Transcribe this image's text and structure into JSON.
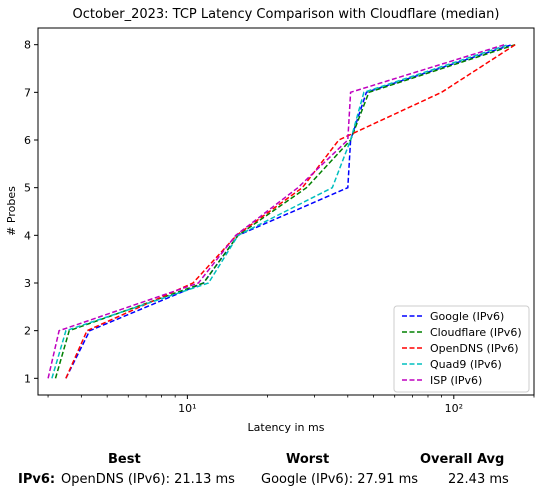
{
  "chart_data": {
    "type": "line",
    "title": "October_2023: TCP Latency Comparison with Cloudflare (median)",
    "xlabel": "Latency in ms",
    "ylabel": "# Probes",
    "xscale": "log",
    "xlim": [
      2.75,
      200
    ],
    "ylim": [
      0.65,
      8.35
    ],
    "xticks": [
      {
        "value": 10,
        "label": "10¹"
      },
      {
        "value": 100,
        "label": "10²"
      }
    ],
    "yticks": [
      1,
      2,
      3,
      4,
      5,
      6,
      7,
      8
    ],
    "grid": false,
    "legend_position": "lower-right",
    "line_style": "dashed",
    "series": [
      {
        "name": "Google (IPv6)",
        "color": "#0000ff",
        "x": [
          3.5,
          4.3,
          11.5,
          15.5,
          40,
          41,
          47,
          165
        ],
        "y": [
          1,
          2,
          3,
          4,
          5,
          6,
          7,
          8
        ]
      },
      {
        "name": "Cloudflare (IPv6)",
        "color": "#008000",
        "x": [
          3.2,
          3.6,
          11.5,
          15.5,
          28,
          41,
          48,
          170
        ],
        "y": [
          1,
          2,
          3,
          4,
          5,
          6,
          7,
          8
        ]
      },
      {
        "name": "OpenDNS (IPv6)",
        "color": "#ff0000",
        "x": [
          3.5,
          4.2,
          10.5,
          15.3,
          27,
          37,
          90,
          170
        ],
        "y": [
          1,
          2,
          3,
          4,
          5,
          6,
          7,
          8
        ]
      },
      {
        "name": "Quad9 (IPv6)",
        "color": "#00bfbf",
        "x": [
          3.1,
          3.5,
          12,
          15.5,
          35,
          41,
          46,
          160
        ],
        "y": [
          1,
          2,
          3,
          4,
          5,
          6,
          7,
          8
        ]
      },
      {
        "name": "ISP (IPv6)",
        "color": "#bf00bf",
        "x": [
          3.0,
          3.3,
          11,
          15.2,
          26,
          40,
          41,
          155
        ],
        "y": [
          1,
          2,
          3,
          4,
          5,
          6,
          7,
          8
        ]
      }
    ]
  },
  "summary": {
    "headers": {
      "best": "Best",
      "worst": "Worst",
      "overall_avg": "Overall Avg"
    },
    "rows": [
      {
        "label": "IPv6:",
        "best": "OpenDNS (IPv6): 21.13 ms",
        "worst": "Google (IPv6): 27.91 ms",
        "overall_avg": "22.43 ms"
      }
    ]
  }
}
